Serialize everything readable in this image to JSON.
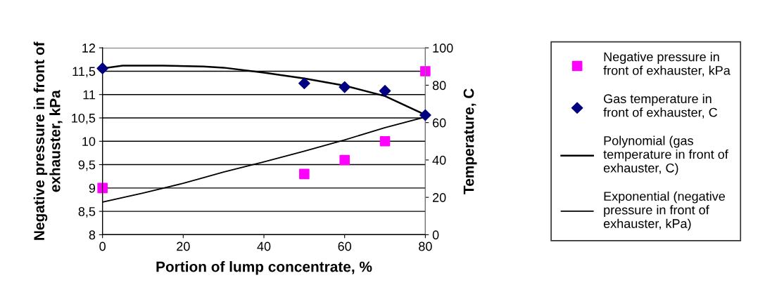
{
  "chart_data": {
    "type": "scatter",
    "xlabel": "Portion of lump concentrate, %",
    "ylabel": "Negative pressure in front of\nexhauster, kPa",
    "y2label": "Temperature, C",
    "xlim": [
      0,
      80
    ],
    "xticks": [
      0,
      20,
      40,
      60,
      80
    ],
    "ylim": [
      8,
      12
    ],
    "yticks": [
      8,
      {
        "value": 8.5,
        "label": "8,5"
      },
      9,
      {
        "value": 9.5,
        "label": "9,5"
      },
      10,
      {
        "value": 10.5,
        "label": "10,5"
      },
      11,
      {
        "value": 11.5,
        "label": "11,5"
      },
      12
    ],
    "y2lim": [
      0,
      100
    ],
    "y2ticks": [
      0,
      20,
      40,
      60,
      80,
      100
    ],
    "grid": "y",
    "legend": "right",
    "series": [
      {
        "name": "Negative pressure in\nfront of exhauster, kPa",
        "marker": "square",
        "color": "#ff00ff",
        "x": [
          0,
          50,
          60,
          70,
          80
        ],
        "values": [
          9.0,
          9.3,
          9.6,
          10.0,
          11.5
        ]
      },
      {
        "name": "Gas temperature in\nfront of exhauster, C",
        "marker": "diamond",
        "color": "#000080",
        "axis": "y2",
        "x": [
          0,
          50,
          60,
          70,
          80
        ],
        "values": [
          89,
          81,
          79,
          77,
          64
        ]
      },
      {
        "name": "Polynomial (gas\ntemperature in front of\nexhauster, C)",
        "type": "line",
        "marker": "none",
        "color": "#000000",
        "axis": "y2",
        "x": [
          0,
          5,
          15,
          25,
          30,
          40,
          50,
          60,
          70,
          80
        ],
        "values": [
          89,
          90.5,
          90.5,
          90,
          89.4,
          86.7,
          83.6,
          79.8,
          74.2,
          64.2
        ]
      },
      {
        "name": "Exponential (negative\npressure in front of\nexhauster, kPa)",
        "type": "line",
        "marker": "none",
        "color": "#000000",
        "x": [
          0,
          10,
          20,
          30,
          40,
          50,
          60,
          70,
          80
        ],
        "values": [
          8.7,
          8.89,
          9.1,
          9.34,
          9.56,
          9.79,
          10.03,
          10.29,
          10.52
        ]
      }
    ]
  }
}
